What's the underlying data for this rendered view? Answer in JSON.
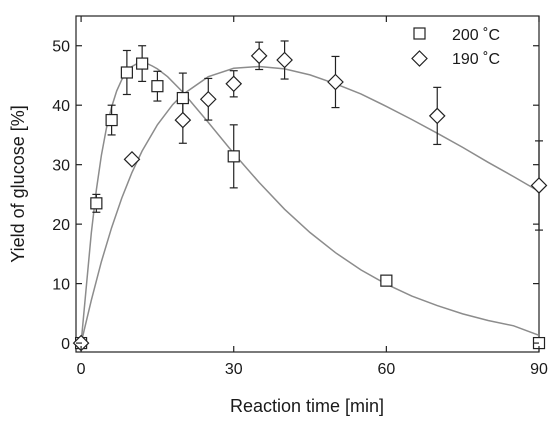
{
  "chart_data": {
    "type": "scatter",
    "title": "",
    "xlabel": "Reaction time [min]",
    "ylabel": "Yield of glucose [%]",
    "xlim": [
      -1,
      90
    ],
    "ylim": [
      -1.5,
      55
    ],
    "xticks": [
      0,
      30,
      60,
      90
    ],
    "yticks": [
      0,
      10,
      20,
      30,
      40,
      50
    ],
    "grid": false,
    "legend_position": "top-right",
    "series": [
      {
        "name": "200 ˚C",
        "marker": "square",
        "x": [
          0,
          3,
          6,
          9,
          12,
          15,
          20,
          30,
          60,
          90
        ],
        "y": [
          0,
          23.5,
          37.5,
          45.5,
          47,
          43.2,
          41.2,
          31.4,
          10.5,
          0
        ],
        "error": [
          0,
          1.5,
          2.5,
          3.7,
          3,
          2.5,
          4.2,
          5.3,
          0,
          0
        ],
        "fit": {
          "x": [
            0,
            1,
            2,
            3,
            4,
            5,
            6,
            7,
            8,
            9,
            10,
            11,
            12,
            13,
            14,
            15,
            17,
            20,
            25,
            30,
            35,
            40,
            45,
            50,
            55,
            60,
            65,
            70,
            75,
            80,
            85,
            90
          ],
          "y": [
            0,
            9.3,
            18.5,
            25.8,
            31.6,
            36.2,
            39.7,
            42.4,
            44.3,
            45.6,
            46.5,
            47,
            47.1,
            47,
            46.6,
            46.1,
            44.8,
            42.2,
            37.1,
            31.9,
            27,
            22.5,
            18.6,
            15.2,
            12.3,
            9.9,
            7.9,
            6.3,
            4.9,
            3.8,
            2.9,
            1.3
          ]
        }
      },
      {
        "name": "190 ˚C",
        "marker": "diamond",
        "x": [
          0,
          10,
          20,
          25,
          30,
          35,
          40,
          50,
          70,
          90
        ],
        "y": [
          0,
          30.9,
          37.5,
          41,
          43.6,
          48.3,
          47.6,
          43.9,
          38.2,
          26.5
        ],
        "error": [
          0,
          0,
          3.9,
          3.5,
          2.2,
          2.3,
          3.2,
          4.3,
          4.8,
          7.5
        ],
        "fit": {
          "x": [
            0,
            2,
            4,
            6,
            8,
            10,
            12,
            15,
            18,
            20,
            25,
            30,
            35,
            40,
            45,
            50,
            55,
            60,
            65,
            70,
            75,
            80,
            85,
            90
          ],
          "y": [
            0,
            7.2,
            13.7,
            19.4,
            24.4,
            28.7,
            32.3,
            36.7,
            40.1,
            41.8,
            44.8,
            46.2,
            46.5,
            46.1,
            45.1,
            43.6,
            41.9,
            39.8,
            37.6,
            35.3,
            32.9,
            30.4,
            28,
            25.5
          ]
        }
      }
    ]
  }
}
